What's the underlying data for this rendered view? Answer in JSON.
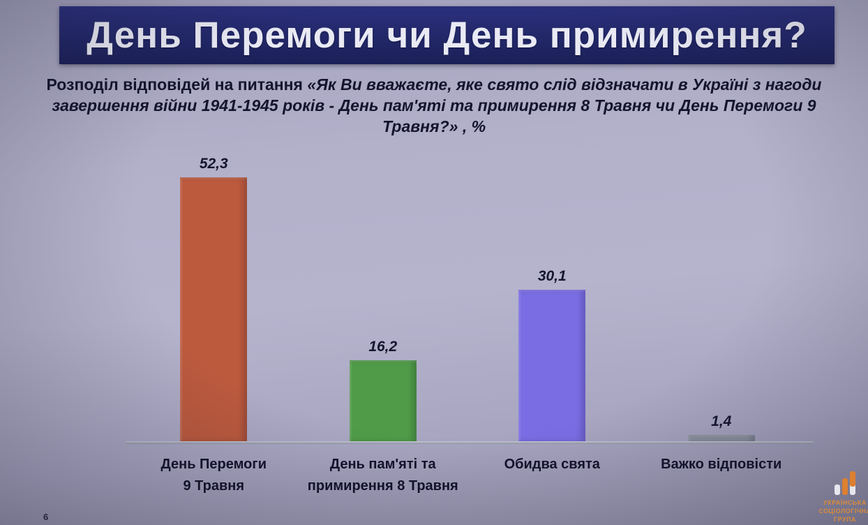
{
  "slide": {
    "title": "День Перемоги чи День примирення?",
    "subtitle_prefix": "Розподіл відповідей на питання ",
    "subtitle_question": "«Як Ви вважаєте, яке свято слід відзначати в Україні з нагоди завершення війни 1941-1945 років - День пам'яті та примирення 8 Травня чи День Перемоги 9 Травня?»",
    "subtitle_suffix": " , %",
    "page_number": "6"
  },
  "logo": {
    "line1": "УКРАЇНСЬКА",
    "line2": "СОЦІОЛОГІЧНА",
    "line3": "ГРУПА"
  },
  "chart_data": {
    "type": "bar",
    "title": "День Перемоги чи День примирення?",
    "categories": [
      "День Перемоги\n9 Травня",
      "День пам'яті та\nпримирення 8 Травня",
      "Обидва свята",
      "Важко відповісти"
    ],
    "values": [
      52.3,
      16.2,
      30.1,
      1.4
    ],
    "value_labels": [
      "52,3",
      "16,2",
      "30,1",
      "1,4"
    ],
    "colors": [
      "#bc5a3e",
      "#4f9b48",
      "#7a6de4",
      "#8e94a2"
    ],
    "xlabel": "",
    "ylabel": "",
    "unit": "%",
    "ylim": [
      0,
      60
    ],
    "grid": false,
    "legend": false,
    "value_label_position": "above"
  }
}
